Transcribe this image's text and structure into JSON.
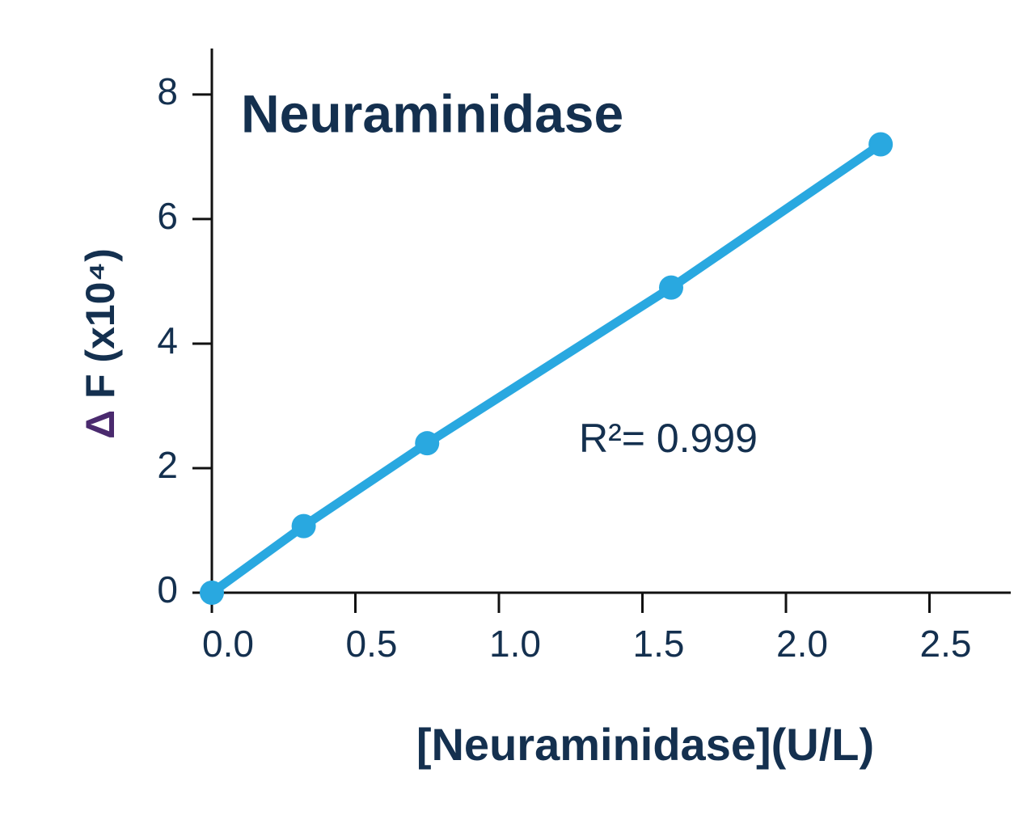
{
  "chart_data": {
    "type": "line",
    "title": "Neuraminidase",
    "xlabel": "[Neuraminidase](U/L)",
    "ylabel_symbol": "Δ",
    "ylabel": "F (x10⁴)",
    "annotation": "R²= 0.999",
    "x": [
      0,
      0.32,
      0.75,
      1.6,
      2.33
    ],
    "values": [
      0,
      1.07,
      2.4,
      4.9,
      7.2
    ],
    "color": "#29a8e0",
    "xlim": [
      0,
      2.8
    ],
    "xticks": [
      {
        "value": 0,
        "label": "0.0"
      },
      0.5,
      {
        "value": 1,
        "label": "1.0"
      },
      1.5,
      {
        "value": 2,
        "label": "2.0"
      },
      2.5
    ],
    "ylim": [
      0,
      8.7
    ],
    "yticks": [
      0,
      2,
      4,
      6,
      8
    ],
    "grid": false
  }
}
